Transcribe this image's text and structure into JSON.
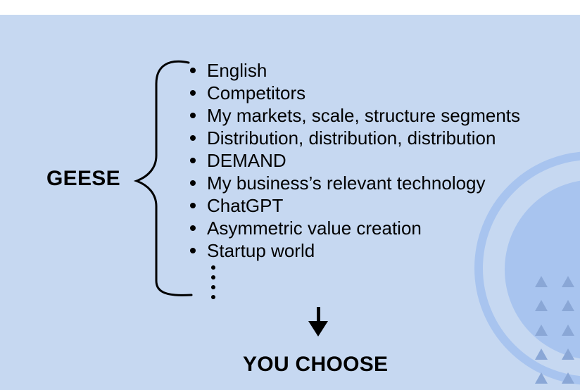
{
  "left_label": "GEESE",
  "items": [
    "English",
    "Competitors",
    "My markets, scale, structure segments",
    "Distribution, distribution, distribution",
    "DEMAND",
    "My business’s relevant technology",
    "ChatGPT",
    "Asymmetric value creation",
    "Startup world"
  ],
  "bottom_label": "YOU CHOOSE",
  "colors": {
    "background": "#c6d8f1",
    "ring": "#a8c4ef",
    "triangles": "#8aa7d6",
    "text": "#000000"
  },
  "icons": [
    "curly-brace-icon",
    "vertical-ellipsis-icon",
    "down-arrow-icon",
    "triangle-pattern-icon"
  ]
}
